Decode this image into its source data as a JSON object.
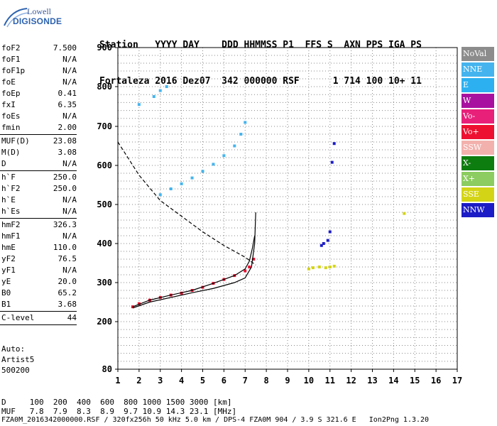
{
  "logo": {
    "line1": "Lowell",
    "line2": "DIGISONDE"
  },
  "header": {
    "labels": "Station   YYYY DAY    DDD HHMMSS P1  FFS S  AXN PPS IGA PS",
    "values": "Fortaleza 2016 Dez07  342 000000 RSF      1 714 100 10+ 11"
  },
  "params": [
    {
      "name": "foF2",
      "value": "7.500"
    },
    {
      "name": "foF1",
      "value": "N/A"
    },
    {
      "name": "foF1p",
      "value": "N/A"
    },
    {
      "name": "foE",
      "value": "N/A"
    },
    {
      "name": "foEp",
      "value": "0.41"
    },
    {
      "name": "fxI",
      "value": "6.35"
    },
    {
      "name": "foEs",
      "value": "N/A"
    },
    {
      "name": "fmin",
      "value": "2.00"
    },
    {
      "sep": true
    },
    {
      "name": "MUF(D)",
      "value": "23.08"
    },
    {
      "name": "M(D)",
      "value": "3.08"
    },
    {
      "name": "D",
      "value": "N/A"
    },
    {
      "sep": true
    },
    {
      "name": "h`F",
      "value": "250.0"
    },
    {
      "name": "h`F2",
      "value": "250.0"
    },
    {
      "name": "h`E",
      "value": "N/A"
    },
    {
      "name": "h`Es",
      "value": "N/A"
    },
    {
      "sep": true
    },
    {
      "name": "hmF2",
      "value": "326.3"
    },
    {
      "name": "hmF1",
      "value": "N/A"
    },
    {
      "name": "hmE",
      "value": "110.0"
    },
    {
      "name": "yF2",
      "value": "76.5"
    },
    {
      "name": "yF1",
      "value": "N/A"
    },
    {
      "name": "yE",
      "value": "20.0"
    },
    {
      "name": "B0",
      "value": "65.2"
    },
    {
      "name": "B1",
      "value": "3.68"
    },
    {
      "sep": true
    },
    {
      "name": "C-level",
      "value": "44"
    },
    {
      "sep": true
    }
  ],
  "auto": [
    "Auto:",
    "Artist5",
    "500200"
  ],
  "legend": [
    {
      "label": "NoVal",
      "color": "#8c8c8c"
    },
    {
      "label": "NNE",
      "color": "#45b4ee"
    },
    {
      "label": "E",
      "color": "#2cb0f0"
    },
    {
      "label": "W",
      "color": "#a8119f"
    },
    {
      "label": "Vo-",
      "color": "#e8207a"
    },
    {
      "label": "Vo+",
      "color": "#ee1030"
    },
    {
      "label": "SSW",
      "color": "#f3b1ad"
    },
    {
      "label": "X-",
      "color": "#0e7d10"
    },
    {
      "label": "X+",
      "color": "#8ccc60"
    },
    {
      "label": "SSE",
      "color": "#d4d416"
    },
    {
      "label": "NNW",
      "color": "#1c1cc6"
    }
  ],
  "footer": {
    "d_row": "D     100  200  400  600  800 1000 1500 3000 [km]",
    "muf_row": "MUF   7.8  7.9  8.3  8.9  9.7 10.9 14.3 23.1 [MHz]",
    "file_row": "FZA0M_2016342000000.RSF / 320fx256h 50 kHz 5.0 km / DPS-4 FZA0M 904 / 3.9 S 321.6 E   Ion2Png 1.3.20"
  },
  "chart_data": {
    "type": "scatter",
    "xlim": [
      1,
      17
    ],
    "ylim": [
      80,
      900
    ],
    "x_ticks": [
      "1",
      "2",
      "3",
      "4",
      "5",
      "6",
      "7",
      "8",
      "9",
      "10",
      "11",
      "12",
      "13",
      "14",
      "15",
      "16",
      "17"
    ],
    "y_ticks": [
      "80",
      "200",
      "300",
      "400",
      "500",
      "600",
      "700",
      "800",
      "900"
    ],
    "y_tick_values": [
      80,
      200,
      300,
      400,
      500,
      600,
      700,
      800,
      900
    ],
    "grid": "dotted",
    "series": [
      {
        "name": "O-trace (lower)",
        "color": "#ee1030",
        "points": [
          [
            1.7,
            238
          ],
          [
            2,
            246
          ],
          [
            2.5,
            255
          ],
          [
            3,
            262
          ],
          [
            3.5,
            268
          ],
          [
            4,
            273
          ],
          [
            4.5,
            280
          ],
          [
            5,
            288
          ],
          [
            5.5,
            298
          ],
          [
            6,
            308
          ],
          [
            6.5,
            318
          ],
          [
            7,
            330
          ],
          [
            7.2,
            340
          ],
          [
            7.4,
            360
          ]
        ]
      },
      {
        "name": "multihop",
        "color": "#45b4ee",
        "points": [
          [
            2,
            755
          ],
          [
            2.7,
            775
          ],
          [
            3,
            790
          ],
          [
            3.3,
            800
          ],
          [
            3,
            525
          ],
          [
            3.5,
            540
          ],
          [
            4,
            553
          ],
          [
            4.5,
            568
          ],
          [
            5,
            585
          ],
          [
            5.5,
            603
          ],
          [
            6,
            625
          ],
          [
            6.5,
            650
          ],
          [
            6.8,
            680
          ],
          [
            7,
            710
          ]
        ]
      },
      {
        "name": "Es",
        "color": "#d4d416",
        "points": [
          [
            10.0,
            335
          ],
          [
            10.2,
            338
          ],
          [
            10.5,
            340
          ],
          [
            10.8,
            338
          ],
          [
            11,
            340
          ],
          [
            11.2,
            342
          ],
          [
            14.5,
            477
          ]
        ]
      },
      {
        "name": "misc",
        "color": "#1c1cc6",
        "points": [
          [
            10.6,
            395
          ],
          [
            10.7,
            400
          ],
          [
            10.9,
            408
          ],
          [
            11,
            430
          ],
          [
            11.1,
            608
          ],
          [
            11.2,
            656
          ]
        ]
      },
      {
        "name": "profile_true_height",
        "color": "#000000",
        "points": [
          [
            1.7,
            235
          ],
          [
            2.5,
            250
          ],
          [
            3.5,
            262
          ],
          [
            4.5,
            274
          ],
          [
            5.5,
            285
          ],
          [
            6.5,
            300
          ],
          [
            7,
            312
          ],
          [
            7.3,
            340
          ],
          [
            7.45,
            400
          ],
          [
            7.5,
            480
          ]
        ]
      },
      {
        "name": "profile_virtual_height",
        "color": "#000000",
        "points": [
          [
            1.7,
            238
          ],
          [
            2.5,
            255
          ],
          [
            3.5,
            268
          ],
          [
            4.5,
            280
          ],
          [
            5.5,
            298
          ],
          [
            6.5,
            318
          ],
          [
            7,
            335
          ],
          [
            7.2,
            355
          ],
          [
            7.35,
            390
          ],
          [
            7.45,
            420
          ]
        ]
      },
      {
        "name": "muf_curve",
        "color": "#000000",
        "points": [
          [
            1,
            660
          ],
          [
            2,
            575
          ],
          [
            3,
            510
          ],
          [
            4,
            470
          ],
          [
            5,
            430
          ],
          [
            6,
            395
          ],
          [
            7,
            365
          ],
          [
            7.5,
            345
          ]
        ]
      }
    ]
  }
}
